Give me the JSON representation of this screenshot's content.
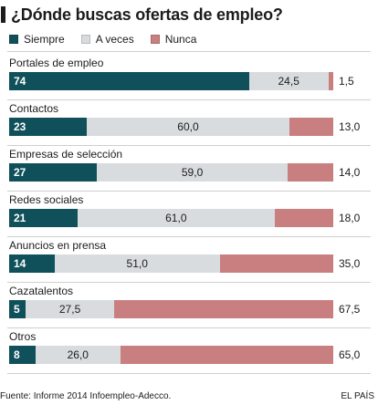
{
  "title": "¿Dónde buscas ofertas de empleo?",
  "legend": [
    {
      "label": "Siempre",
      "color": "#10505a"
    },
    {
      "label": "A veces",
      "color": "#d9dcde"
    },
    {
      "label": "Nunca",
      "color": "#c97f7f"
    }
  ],
  "chart_data": {
    "type": "bar",
    "orientation": "horizontal",
    "stacked": true,
    "categories": [
      "Portales de empleo",
      "Contactos",
      "Empresas de selección",
      "Redes sociales",
      "Anuncios en prensa",
      "Cazatalentos",
      "Otros"
    ],
    "series": [
      {
        "name": "Siempre",
        "values": [
          74,
          23,
          27,
          21,
          14,
          5,
          8
        ],
        "labels": [
          "74",
          "23",
          "27",
          "21",
          "14",
          "5",
          "8"
        ],
        "color": "#10505a"
      },
      {
        "name": "A veces",
        "values": [
          24.5,
          60.0,
          59.0,
          61.0,
          51.0,
          27.5,
          26.0
        ],
        "labels": [
          "24,5",
          "60,0",
          "59,0",
          "61,0",
          "51,0",
          "27,5",
          "26,0"
        ],
        "color": "#d9dcde"
      },
      {
        "name": "Nunca",
        "values": [
          1.5,
          13.0,
          14.0,
          18.0,
          35.0,
          67.5,
          65.0
        ],
        "labels": [
          "1,5",
          "13,0",
          "14,0",
          "18,0",
          "35,0",
          "67,5",
          "65,0"
        ],
        "color": "#c97f7f"
      }
    ],
    "unit": "%",
    "xlim": [
      0,
      100
    ]
  },
  "footer": {
    "source": "Fuente: Informe 2014 Infoempleo-Adecco.",
    "brand": "EL PAÍS"
  }
}
